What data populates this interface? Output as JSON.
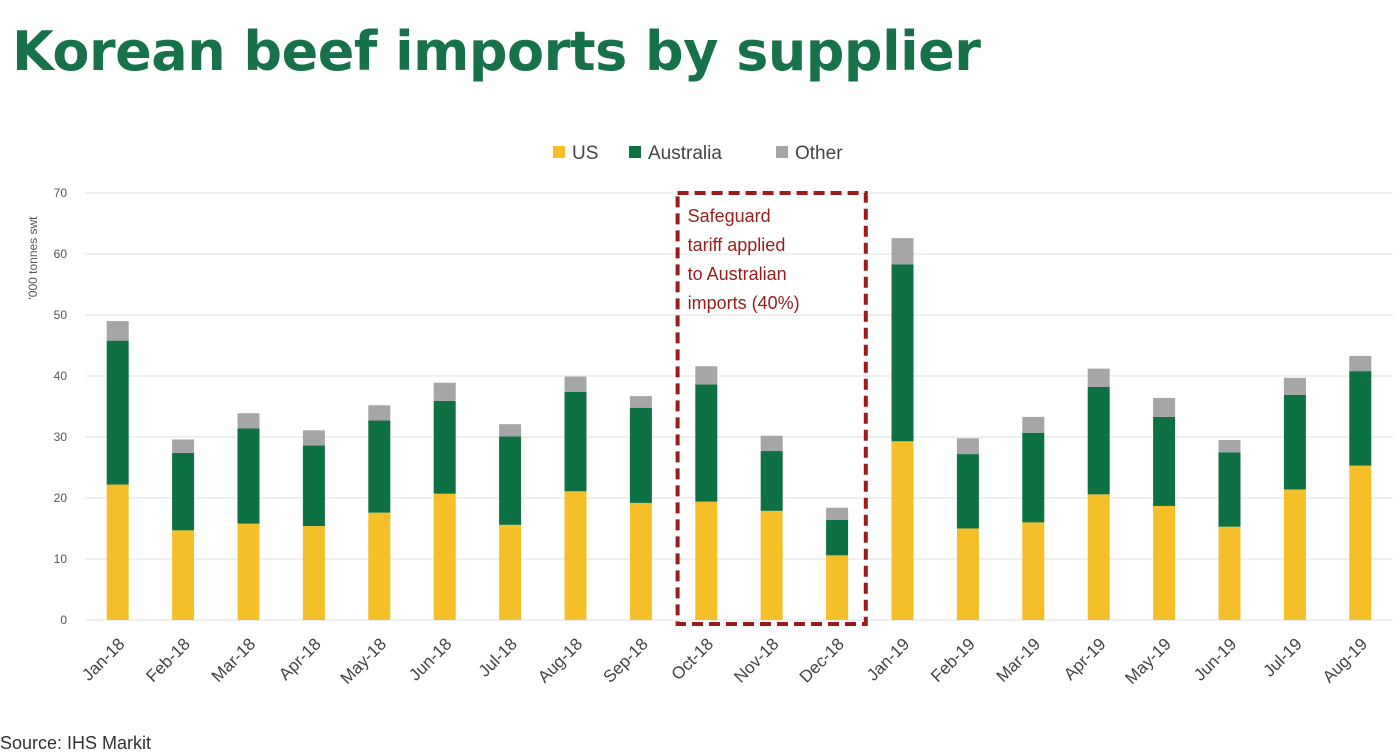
{
  "page_title": "Korean beef imports by supplier",
  "source_note": "Source: IHS Markit",
  "colors": {
    "title": "#17714a",
    "US": "#f5bf2a",
    "Australia": "#0e7143",
    "Other": "#a6a6a6",
    "grid": "#e2e2e2",
    "annotation": "#9b1c1c"
  },
  "chart_data": {
    "type": "bar",
    "stacked": true,
    "title": "",
    "xlabel": "",
    "ylabel": "'000 tonnes swt",
    "ylim": [
      0,
      70
    ],
    "yticks": [
      0,
      10,
      20,
      30,
      40,
      50,
      60,
      70
    ],
    "grid": true,
    "legend_position": "top-center",
    "categories": [
      "Jan-18",
      "Feb-18",
      "Mar-18",
      "Apr-18",
      "May-18",
      "Jun-18",
      "Jul-18",
      "Aug-18",
      "Sep-18",
      "Oct-18",
      "Nov-18",
      "Dec-18",
      "Jan-19",
      "Feb-19",
      "Mar-19",
      "Apr-19",
      "May-19",
      "Jun-19",
      "Jul-19",
      "Aug-19"
    ],
    "series": [
      {
        "name": "US",
        "values": [
          22.2,
          14.7,
          15.8,
          15.4,
          17.6,
          20.7,
          15.6,
          21.1,
          19.2,
          19.4,
          17.9,
          10.6,
          29.3,
          15.0,
          16.0,
          20.6,
          18.7,
          15.3,
          21.4,
          25.3
        ]
      },
      {
        "name": "Australia",
        "values": [
          23.6,
          12.7,
          15.6,
          13.2,
          15.1,
          15.2,
          14.5,
          16.3,
          15.6,
          19.2,
          9.8,
          5.8,
          29.0,
          12.2,
          14.7,
          17.6,
          14.6,
          12.2,
          15.5,
          15.5
        ]
      },
      {
        "name": "Other",
        "values": [
          3.2,
          2.2,
          2.5,
          2.5,
          2.5,
          3.0,
          2.0,
          2.5,
          1.9,
          3.0,
          2.5,
          2.0,
          4.3,
          2.6,
          2.6,
          3.0,
          3.1,
          2.0,
          2.8,
          2.5
        ]
      }
    ],
    "annotation": {
      "text_lines": [
        "Safeguard",
        "tariff applied",
        "to Australian",
        "imports (40%)"
      ],
      "span_categories": [
        "Oct-18",
        "Dec-18"
      ],
      "style": "dashed box"
    }
  }
}
